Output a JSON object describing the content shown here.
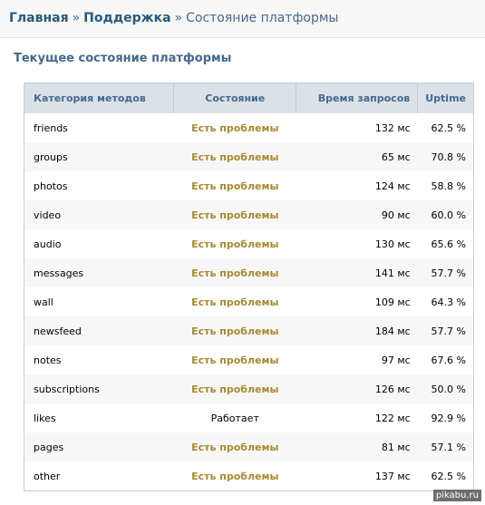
{
  "breadcrumb": {
    "home": "Главная",
    "separator": "»",
    "support": "Поддержка",
    "current": "Состояние платформы"
  },
  "page_title": "Текущее состояние платформы",
  "table": {
    "headers": [
      "Категория методов",
      "Состояние",
      "Время запросов",
      "Uptime"
    ],
    "rows": [
      {
        "category": "friends",
        "status": "Есть проблемы",
        "problem": true,
        "time": "132 мс",
        "uptime": "62.5 %"
      },
      {
        "category": "groups",
        "status": "Есть проблемы",
        "problem": true,
        "time": "65 мс",
        "uptime": "70.8 %"
      },
      {
        "category": "photos",
        "status": "Есть проблемы",
        "problem": true,
        "time": "124 мс",
        "uptime": "58.8 %"
      },
      {
        "category": "video",
        "status": "Есть проблемы",
        "problem": true,
        "time": "90 мс",
        "uptime": "60.0 %"
      },
      {
        "category": "audio",
        "status": "Есть проблемы",
        "problem": true,
        "time": "130 мс",
        "uptime": "65.6 %"
      },
      {
        "category": "messages",
        "status": "Есть проблемы",
        "problem": true,
        "time": "141 мс",
        "uptime": "57.7 %"
      },
      {
        "category": "wall",
        "status": "Есть проблемы",
        "problem": true,
        "time": "109 мс",
        "uptime": "64.3 %"
      },
      {
        "category": "newsfeed",
        "status": "Есть проблемы",
        "problem": true,
        "time": "184 мс",
        "uptime": "57.7 %"
      },
      {
        "category": "notes",
        "status": "Есть проблемы",
        "problem": true,
        "time": "97 мс",
        "uptime": "67.6 %"
      },
      {
        "category": "subscriptions",
        "status": "Есть проблемы",
        "problem": true,
        "time": "126 мс",
        "uptime": "50.0 %"
      },
      {
        "category": "likes",
        "status": "Работает",
        "problem": false,
        "time": "122 мс",
        "uptime": "92.9 %"
      },
      {
        "category": "pages",
        "status": "Есть проблемы",
        "problem": true,
        "time": "81 мс",
        "uptime": "57.1 %"
      },
      {
        "category": "other",
        "status": "Есть проблемы",
        "problem": true,
        "time": "137 мс",
        "uptime": "62.5 %"
      }
    ]
  },
  "colors": {
    "link": "#2b587a",
    "title": "#45688e",
    "header_bg": "#dae2e8",
    "problem": "#a68a34"
  },
  "watermark": "pikabu.ru"
}
